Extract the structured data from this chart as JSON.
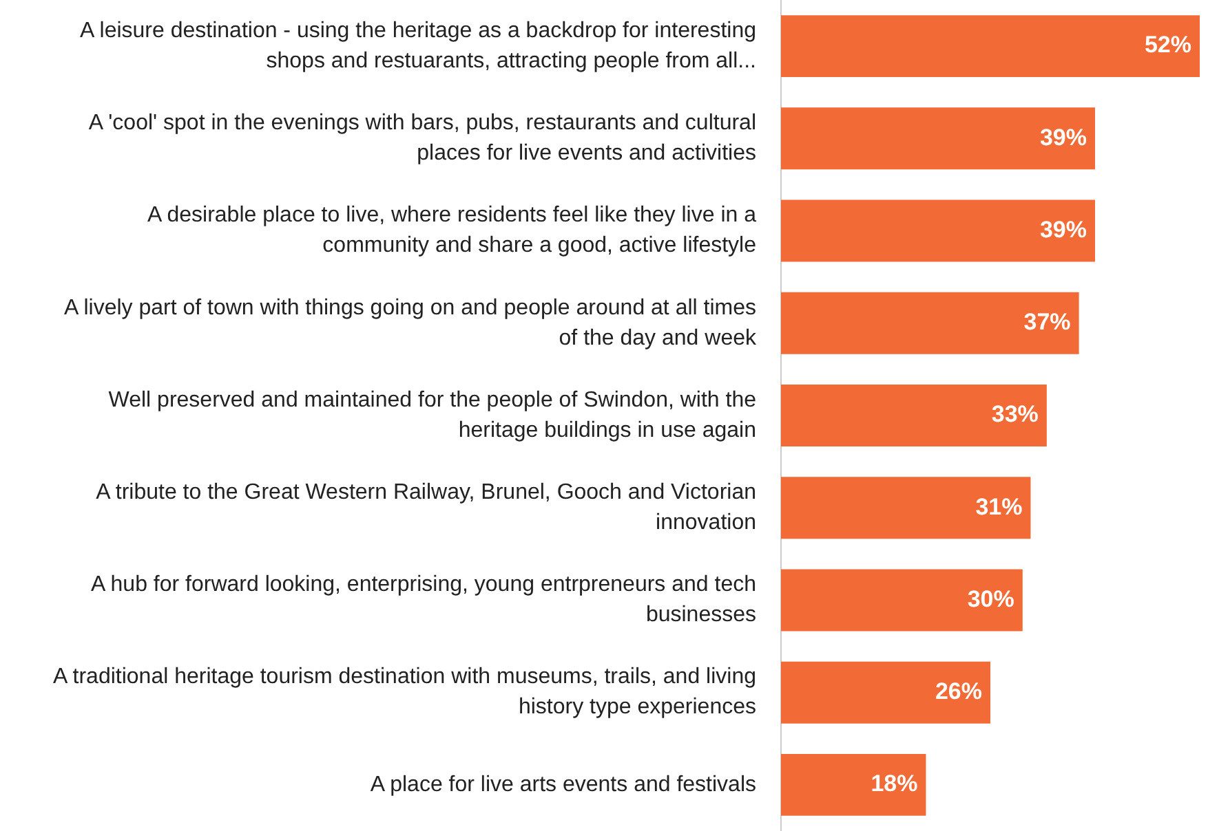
{
  "chart_data": {
    "type": "bar",
    "orientation": "horizontal",
    "categories": [
      "A leisure destination - using the heritage as a backdrop for interesting shops and restuarants, attracting people from all...",
      "A 'cool' spot in the evenings with bars, pubs, restaurants and cultural places for live events and activities",
      "A desirable place to live, where residents feel like they live in a community and share a good, active lifestyle",
      "A lively part of town with things going on and people around at all times of the day and week",
      "Well preserved and maintained for the people of Swindon, with the heritage buildings in use again",
      "A tribute to the Great Western Railway, Brunel, Gooch and Victorian innovation",
      "A hub for forward looking, enterprising, young entrpreneurs and tech businesses",
      "A traditional heritage tourism destination with museums, trails, and living history type experiences",
      "A place for live arts events and festivals"
    ],
    "values": [
      52,
      39,
      39,
      37,
      33,
      31,
      30,
      26,
      18
    ],
    "value_labels": [
      "52%",
      "39%",
      "39%",
      "37%",
      "33%",
      "31%",
      "30%",
      "26%",
      "18%"
    ],
    "color": "#f26a35"
  }
}
